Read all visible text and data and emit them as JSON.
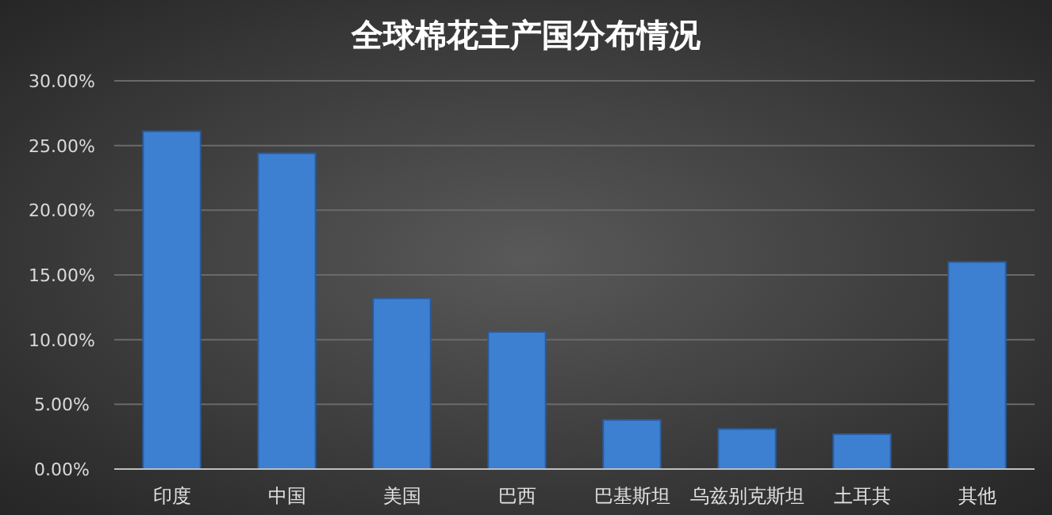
{
  "chart_data": {
    "type": "bar",
    "title": "全球棉花主产国分布情况",
    "categories": [
      "印度",
      "中国",
      "美国",
      "巴西",
      "巴基斯坦",
      "乌兹别克斯坦",
      "土耳其",
      "其他"
    ],
    "values": [
      26.1,
      24.4,
      13.2,
      10.6,
      3.8,
      3.1,
      2.7,
      16.0
    ],
    "color": "#3d7fd0",
    "ylim": [
      0,
      30
    ],
    "yticks": [
      {
        "value": 0,
        "label": "0.00%"
      },
      {
        "value": 5,
        "label": "5.00%"
      },
      {
        "value": 10,
        "label": "10.00%"
      },
      {
        "value": 15,
        "label": "15.00%"
      },
      {
        "value": 20,
        "label": "20.00%"
      },
      {
        "value": 25,
        "label": "25.00%"
      },
      {
        "value": 30,
        "label": "30.00%"
      }
    ],
    "grid": "y"
  }
}
